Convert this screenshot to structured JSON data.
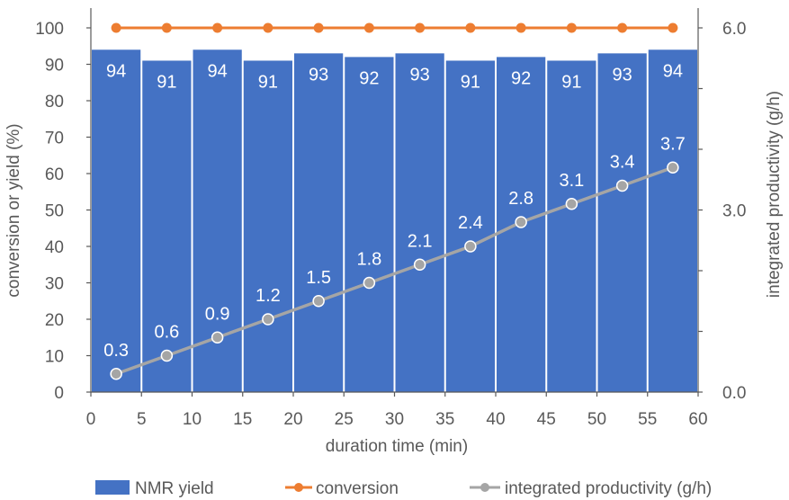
{
  "chart_data": {
    "type": "bar+line",
    "x": [
      2.5,
      7.5,
      12.5,
      17.5,
      22.5,
      27.5,
      32.5,
      37.5,
      42.5,
      47.5,
      52.5,
      57.5
    ],
    "series": [
      {
        "name": "NMR yield",
        "type": "bar",
        "axis": "left",
        "color": "#4472C4",
        "values": [
          94,
          91,
          94,
          91,
          93,
          92,
          93,
          91,
          92,
          91,
          93,
          94
        ],
        "labels": [
          "94",
          "91",
          "94",
          "91",
          "93",
          "92",
          "93",
          "91",
          "92",
          "91",
          "93",
          "94"
        ]
      },
      {
        "name": "conversion",
        "type": "line",
        "axis": "left",
        "color": "#ED7D31",
        "values": [
          100,
          100,
          100,
          100,
          100,
          100,
          100,
          100,
          100,
          100,
          100,
          100
        ]
      },
      {
        "name": "integrated productivity (g/h)",
        "type": "line",
        "axis": "right",
        "color": "#A5A5A5",
        "values": [
          0.3,
          0.6,
          0.9,
          1.2,
          1.5,
          1.8,
          2.1,
          2.4,
          2.8,
          3.1,
          3.4,
          3.7
        ],
        "labels": [
          "0.3",
          "0.6",
          "0.9",
          "1.2",
          "1.5",
          "1.8",
          "2.1",
          "2.4",
          "2.8",
          "3.1",
          "3.4",
          "3.7"
        ]
      }
    ],
    "xlabel": "duration time (min)",
    "ylabel": "conversion or yield (%)",
    "y2label": "integrated productivity (g/h)",
    "xlim": [
      0,
      60
    ],
    "ylim": [
      0,
      100
    ],
    "y2lim": [
      0,
      6
    ],
    "xticks": [
      "0",
      "5",
      "10",
      "15",
      "20",
      "25",
      "30",
      "35",
      "40",
      "45",
      "50",
      "55",
      "60"
    ],
    "yticks": [
      "0",
      "10",
      "20",
      "30",
      "40",
      "50",
      "60",
      "70",
      "80",
      "90",
      "100"
    ],
    "y2ticks": [
      "0.0",
      "3.0",
      "6.0"
    ],
    "legend": {
      "position": "bottom",
      "items": [
        "NMR yield",
        "conversion",
        "integrated productivity (g/h)"
      ]
    },
    "grid": false
  }
}
